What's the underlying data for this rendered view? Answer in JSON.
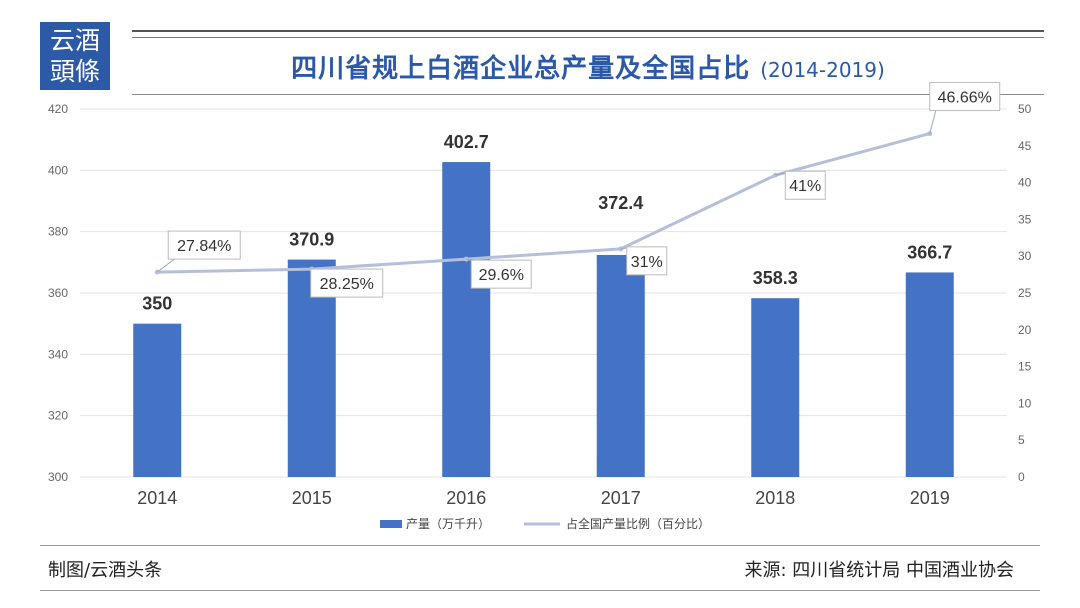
{
  "header": {
    "logo_line1": "云酒",
    "logo_line2": "頭條",
    "title": "四川省规上白酒企业总产量及全国占比",
    "subtitle": "(2014-2019)"
  },
  "footer": {
    "credit": "制图/云酒头条",
    "source": "来源: 四川省统计局 中国酒业协会"
  },
  "colors": {
    "bar": "#4472c4",
    "line": "#b4c0da",
    "title": "#2b59a8"
  },
  "chart_data": {
    "type": "bar",
    "title": "四川省规上白酒企业总产量及全国占比",
    "categories": [
      "2014",
      "2015",
      "2016",
      "2017",
      "2018",
      "2019"
    ],
    "series": [
      {
        "name": "产量（万千升）",
        "type": "bar",
        "axis": "left",
        "values": [
          350,
          370.9,
          402.7,
          372.4,
          358.3,
          366.7
        ],
        "labels": [
          "350",
          "370.9",
          "402.7",
          "372.4",
          "358.3",
          "366.7"
        ]
      },
      {
        "name": "占全国产量比例（百分比）",
        "type": "line",
        "axis": "right",
        "values": [
          27.84,
          28.25,
          29.6,
          31,
          41,
          46.66
        ],
        "labels": [
          "27.84%",
          "28.25%",
          "29.6%",
          "31%",
          "41%",
          "46.66%"
        ]
      }
    ],
    "y_left": {
      "min": 300,
      "max": 420,
      "step": 20,
      "ticks": [
        "300",
        "320",
        "340",
        "360",
        "380",
        "400",
        "420"
      ]
    },
    "y_right": {
      "min": 0,
      "max": 50,
      "step": 5,
      "ticks": [
        "0",
        "5",
        "10",
        "15",
        "20",
        "25",
        "30",
        "35",
        "40",
        "45",
        "50"
      ]
    },
    "grid": true,
    "legend_position": "bottom"
  }
}
